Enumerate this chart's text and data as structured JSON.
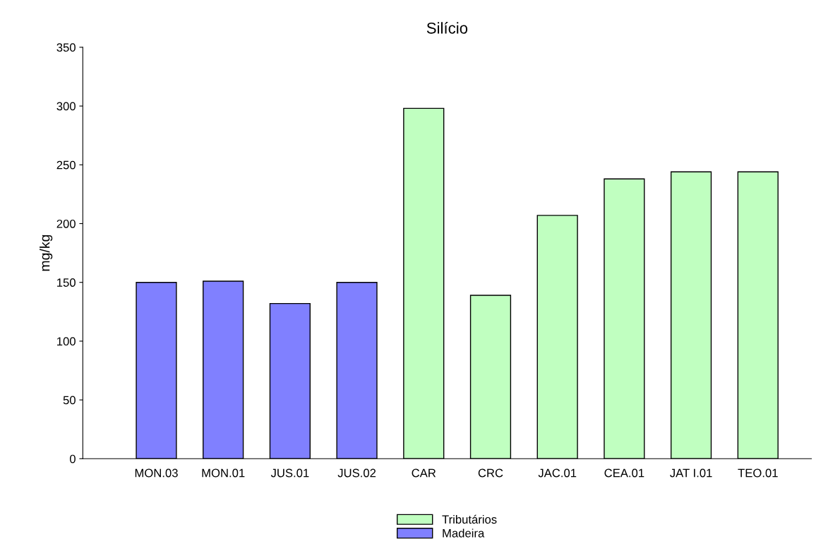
{
  "chart_data": {
    "type": "bar",
    "title": "Silício",
    "ylabel": "mg/kg",
    "categories": [
      "MON.03",
      "MON.01",
      "JUS.01",
      "JUS.02",
      "CAR",
      "CRC",
      "JAC.01",
      "CEA.01",
      "JAT I.01",
      "TEO.01"
    ],
    "series": [
      {
        "name": "Tributários",
        "color": "#c0ffc0",
        "values": [
          null,
          null,
          null,
          null,
          298,
          139,
          207,
          238,
          244,
          244
        ]
      },
      {
        "name": "Madeira",
        "color": "#8080ff",
        "values": [
          150,
          151,
          132,
          150,
          null,
          null,
          null,
          null,
          null,
          null
        ]
      }
    ],
    "ylim": [
      0,
      350
    ],
    "yticks": [
      0,
      50,
      100,
      150,
      200,
      250,
      300,
      350
    ],
    "grid": false,
    "legend": "bottom"
  }
}
